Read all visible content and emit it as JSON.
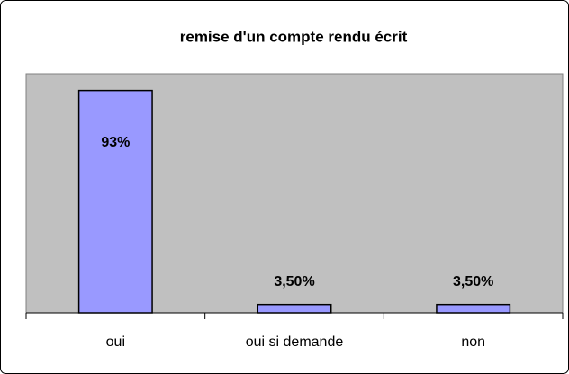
{
  "chart_data": {
    "type": "bar",
    "title": "remise d'un compte rendu écrit",
    "categories": [
      "oui",
      "oui si demande",
      "non"
    ],
    "values": [
      93,
      3.5,
      3.5
    ],
    "value_labels": [
      "93%",
      "3,50%",
      "3,50%"
    ],
    "color": "#9999ff",
    "ylim": [
      0,
      100
    ]
  }
}
